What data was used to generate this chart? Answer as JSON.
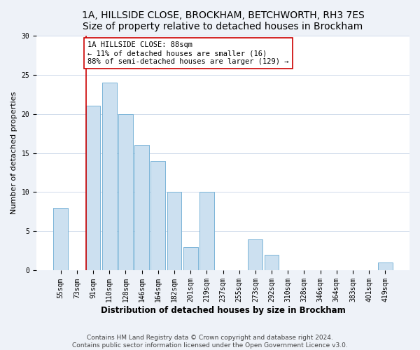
{
  "title1": "1A, HILLSIDE CLOSE, BROCKHAM, BETCHWORTH, RH3 7ES",
  "title2": "Size of property relative to detached houses in Brockham",
  "xlabel": "Distribution of detached houses by size in Brockham",
  "ylabel": "Number of detached properties",
  "bins": [
    "55sqm",
    "73sqm",
    "91sqm",
    "110sqm",
    "128sqm",
    "146sqm",
    "164sqm",
    "182sqm",
    "201sqm",
    "219sqm",
    "237sqm",
    "255sqm",
    "273sqm",
    "292sqm",
    "310sqm",
    "328sqm",
    "346sqm",
    "364sqm",
    "383sqm",
    "401sqm",
    "419sqm"
  ],
  "values": [
    8,
    0,
    21,
    24,
    20,
    16,
    14,
    10,
    3,
    10,
    0,
    0,
    4,
    2,
    0,
    0,
    0,
    0,
    0,
    0,
    1
  ],
  "bar_color": "#cce0f0",
  "bar_edge_color": "#7ab4d8",
  "vline_x_index": 2,
  "vline_color": "#cc0000",
  "annotation_line1": "1A HILLSIDE CLOSE: 88sqm",
  "annotation_line2": "← 11% of detached houses are smaller (16)",
  "annotation_line3": "88% of semi-detached houses are larger (129) →",
  "annotation_box_edge_color": "#cc0000",
  "annotation_box_face_color": "#ffffff",
  "ylim": [
    0,
    30
  ],
  "yticks": [
    0,
    5,
    10,
    15,
    20,
    25,
    30
  ],
  "footer1": "Contains HM Land Registry data © Crown copyright and database right 2024.",
  "footer2": "Contains public sector information licensed under the Open Government Licence v3.0.",
  "bg_color": "#eef2f8",
  "plot_bg_color": "#ffffff",
  "title1_fontsize": 10,
  "title2_fontsize": 9,
  "xlabel_fontsize": 8.5,
  "ylabel_fontsize": 8,
  "tick_fontsize": 7,
  "footer_fontsize": 6.5,
  "annotation_fontsize": 7.5
}
